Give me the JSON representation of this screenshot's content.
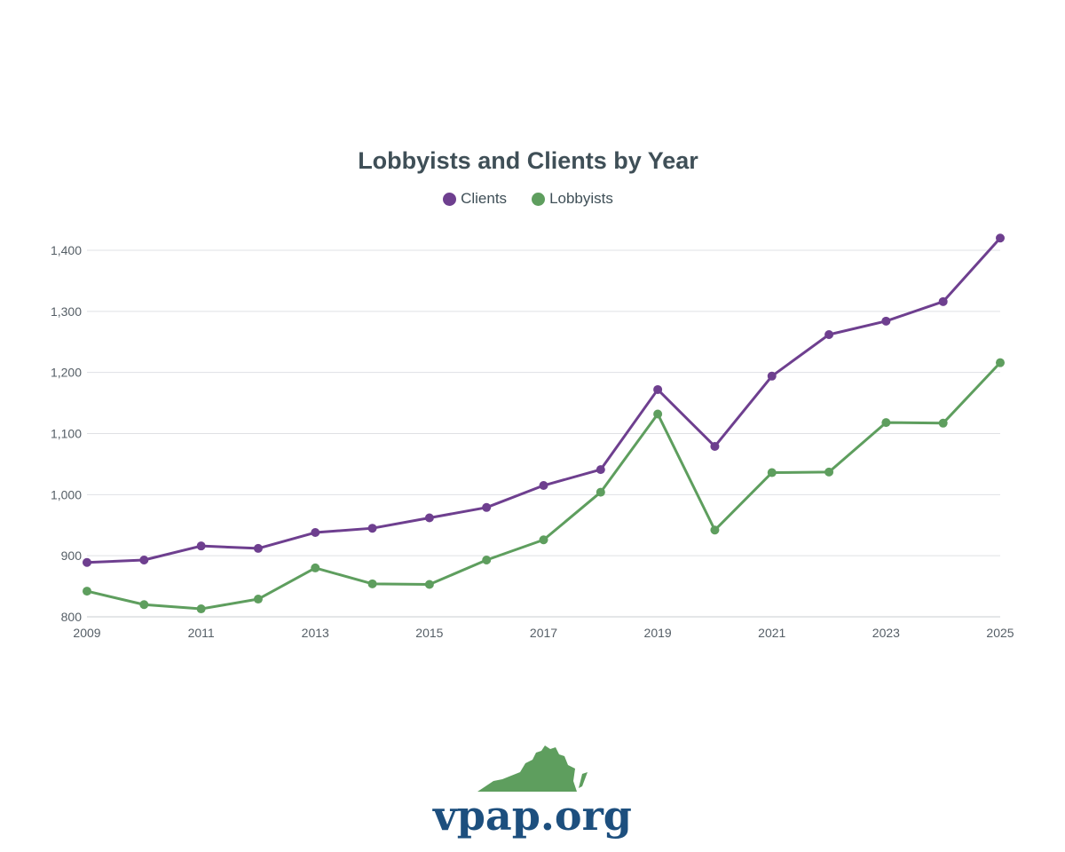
{
  "chart_data": {
    "type": "line",
    "title": "Lobbyists and Clients by Year",
    "x": [
      2009,
      2010,
      2011,
      2012,
      2013,
      2014,
      2015,
      2016,
      2017,
      2018,
      2019,
      2020,
      2021,
      2022,
      2023,
      2024,
      2025
    ],
    "xticks": [
      "2009",
      "2011",
      "2013",
      "2015",
      "2017",
      "2019",
      "2021",
      "2023",
      "2025"
    ],
    "yticks": [
      "800",
      "900",
      "1,000",
      "1,100",
      "1,200",
      "1,300",
      "1,400"
    ],
    "ylim": [
      800,
      1400
    ],
    "xlim": [
      2009,
      2025
    ],
    "grid": true,
    "legend_position": "top-center",
    "series": [
      {
        "name": "Clients",
        "color": "#6e3f8f",
        "values": [
          889,
          893,
          916,
          912,
          938,
          945,
          962,
          979,
          1015,
          1041,
          1172,
          1079,
          1194,
          1262,
          1284,
          1316,
          1420
        ]
      },
      {
        "name": "Lobbyists",
        "color": "#5e9e5e",
        "values": [
          842,
          820,
          813,
          829,
          880,
          854,
          853,
          893,
          926,
          1004,
          1132,
          942,
          1036,
          1037,
          1118,
          1117,
          1216
        ]
      }
    ]
  },
  "logo": {
    "text": "vpap.org",
    "text_color": "#1d4f7e",
    "shape_color": "#5e9e5e"
  }
}
